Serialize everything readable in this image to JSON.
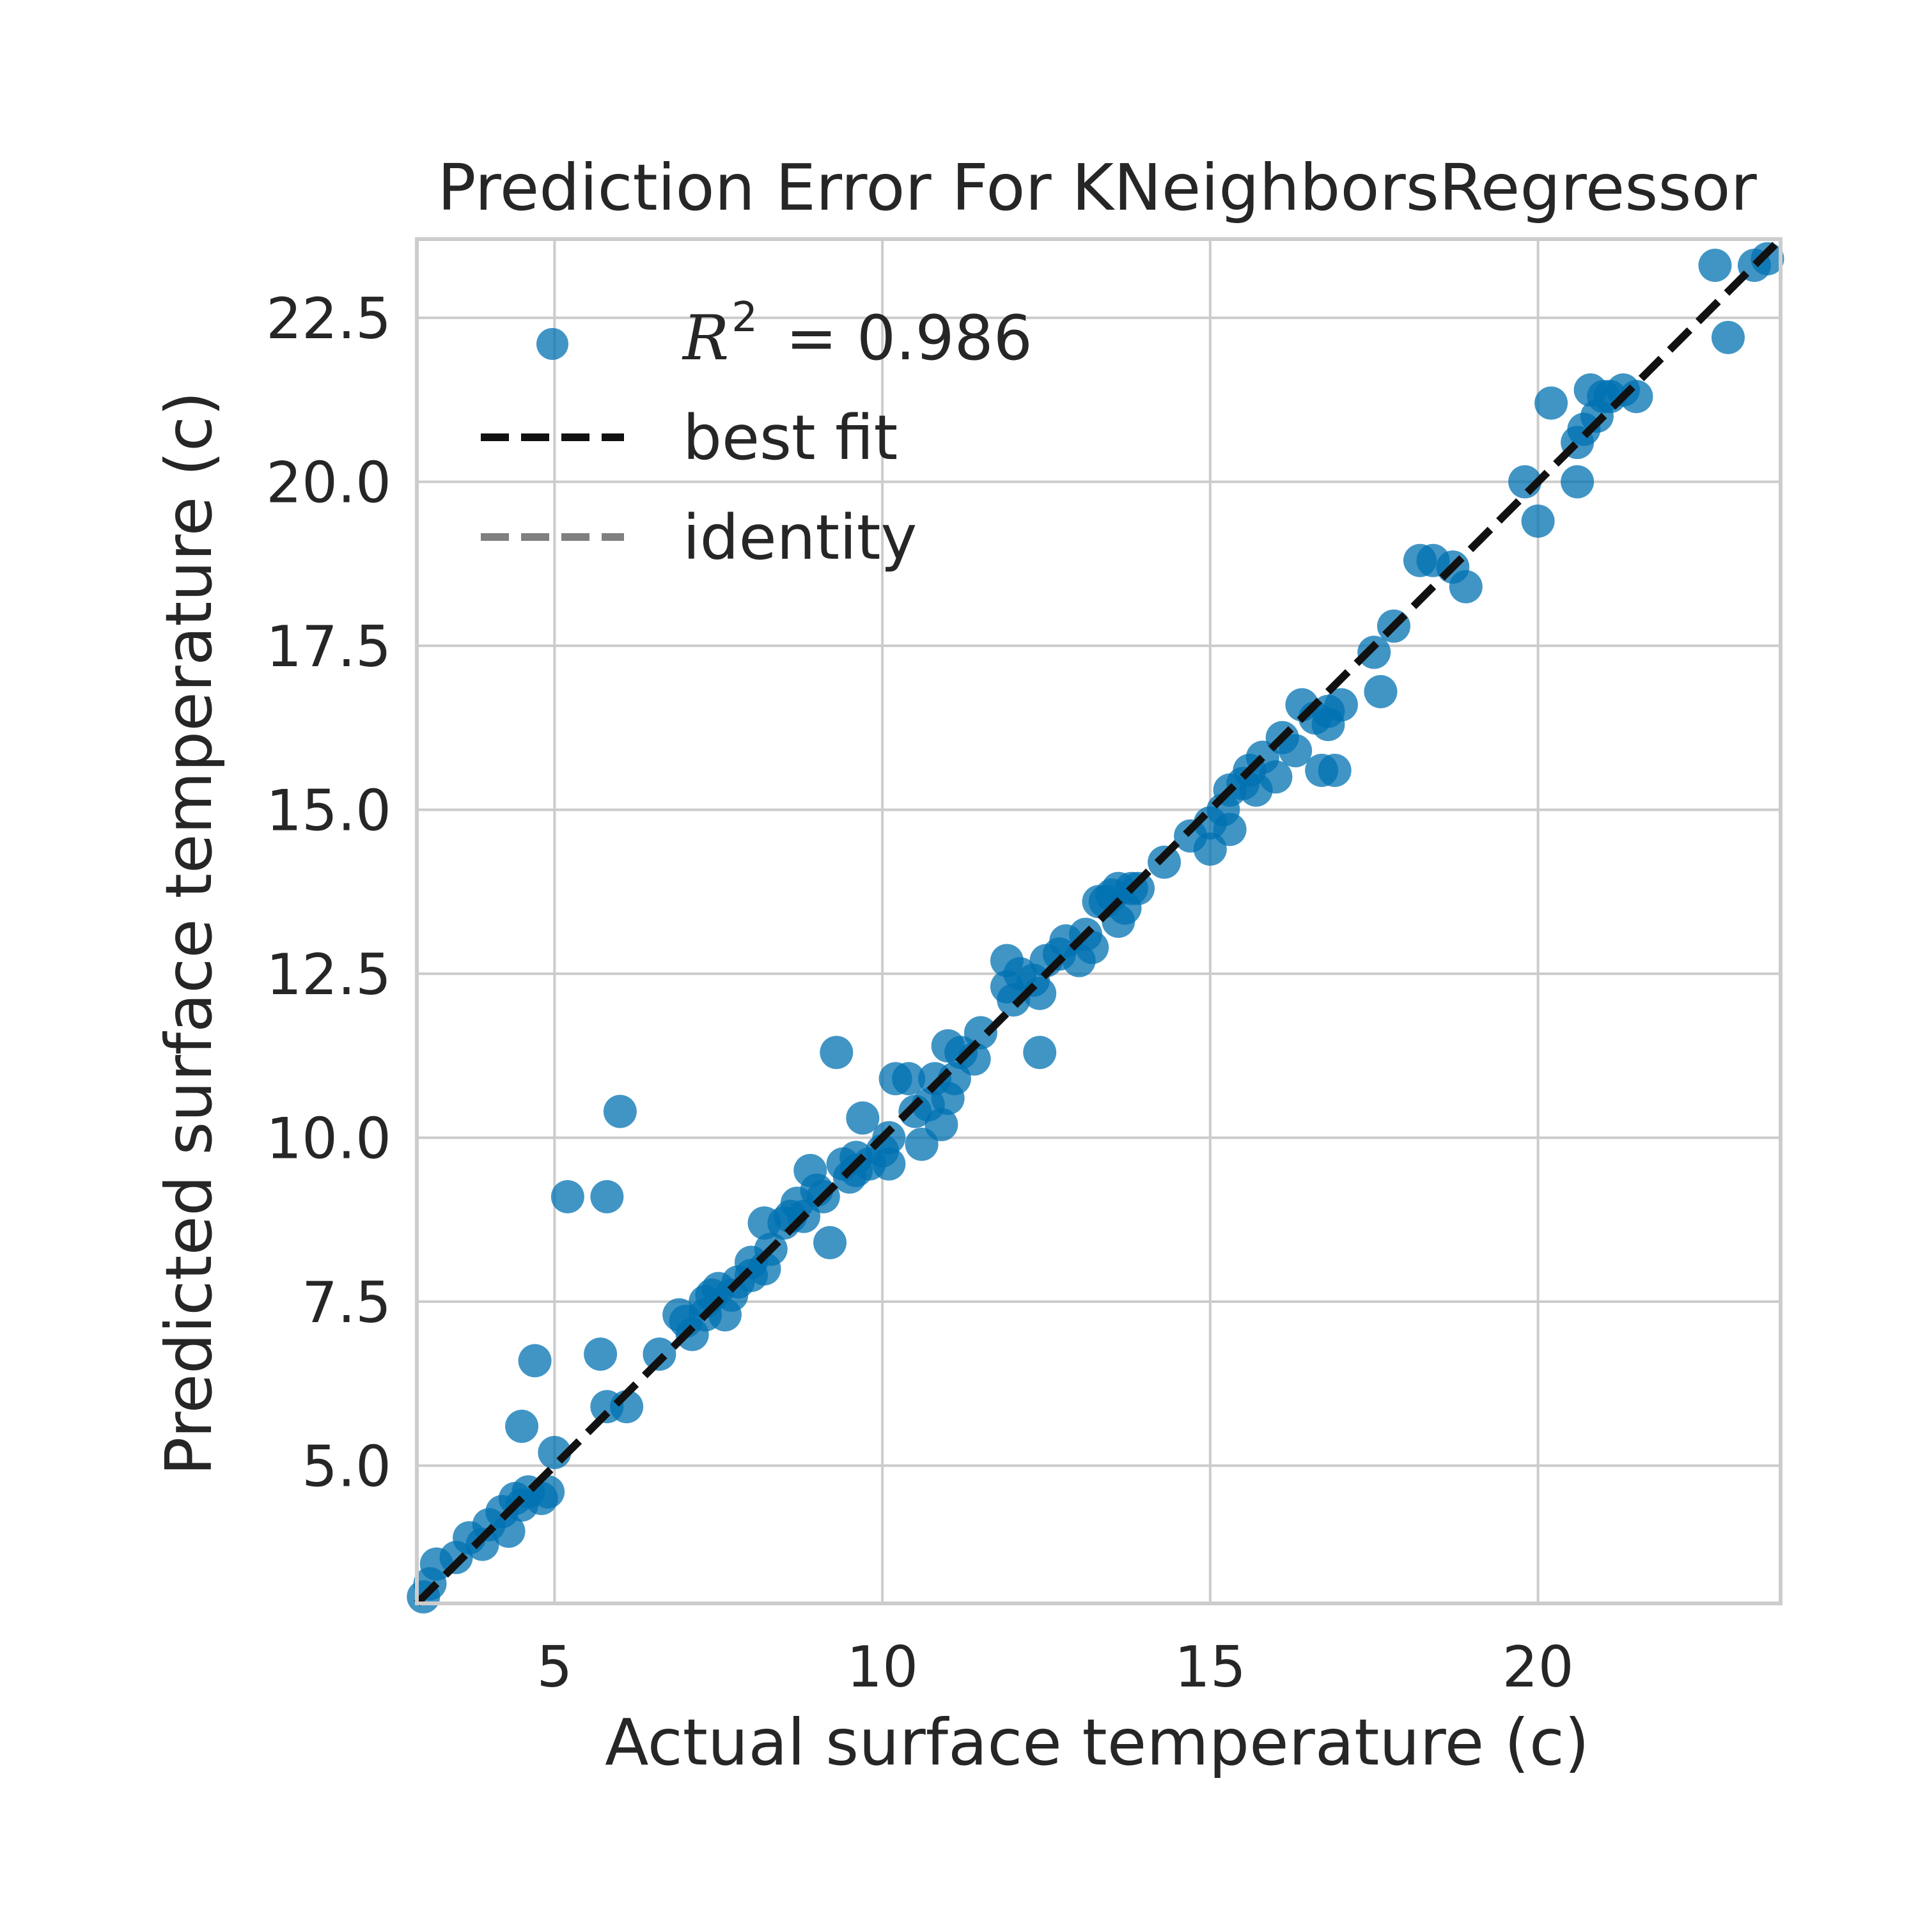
{
  "chart_data": {
    "type": "scatter",
    "title": "Prediction Error For KNeighborsRegressor",
    "xlabel": "Actual surface temperature (c)",
    "ylabel": "Predicted surface temperature (c)",
    "xlim": [
      2.9,
      23.7
    ],
    "ylim": [
      2.9,
      23.7
    ],
    "xticks": [
      5,
      10,
      15,
      20
    ],
    "xtick_labels": [
      "5",
      "10",
      "15",
      "20"
    ],
    "yticks": [
      5.0,
      7.5,
      10.0,
      12.5,
      15.0,
      17.5,
      20.0,
      22.5
    ],
    "ytick_labels": [
      "5.0",
      "7.5",
      "10.0",
      "12.5",
      "15.0",
      "17.5",
      "20.0",
      "22.5"
    ],
    "grid": true,
    "legend_position": "upper-left",
    "legend": {
      "r2_symbol": "R",
      "r2_exponent": "2",
      "r2_value": "= 0.986",
      "best_fit_label": "best fit",
      "identity_label": "identity"
    },
    "colors": {
      "points": "#0072B2",
      "best_fit": "#111111",
      "identity": "#808080",
      "grid": "#cccccc",
      "frame": "#cccccc"
    },
    "best_fit": {
      "slope": 1.0,
      "intercept": 0.0
    },
    "points": [
      [
        3.0,
        3.0
      ],
      [
        3.2,
        3.5
      ],
      [
        3.1,
        3.2
      ],
      [
        3.5,
        3.6
      ],
      [
        3.7,
        3.9
      ],
      [
        3.9,
        3.8
      ],
      [
        4.0,
        4.1
      ],
      [
        4.2,
        4.3
      ],
      [
        4.3,
        4.0
      ],
      [
        4.4,
        4.5
      ],
      [
        4.5,
        4.4
      ],
      [
        4.5,
        5.6
      ],
      [
        4.6,
        4.6
      ],
      [
        4.7,
        6.6
      ],
      [
        4.8,
        4.5
      ],
      [
        4.9,
        4.6
      ],
      [
        5.0,
        5.2
      ],
      [
        5.2,
        9.1
      ],
      [
        5.7,
        6.7
      ],
      [
        5.8,
        9.1
      ],
      [
        5.8,
        5.9
      ],
      [
        6.0,
        10.4
      ],
      [
        6.1,
        5.9
      ],
      [
        6.6,
        6.7
      ],
      [
        6.9,
        7.3
      ],
      [
        7.0,
        7.2
      ],
      [
        7.1,
        7.0
      ],
      [
        7.3,
        7.3
      ],
      [
        7.3,
        7.5
      ],
      [
        7.4,
        7.6
      ],
      [
        7.5,
        7.7
      ],
      [
        7.6,
        7.3
      ],
      [
        7.7,
        7.6
      ],
      [
        7.8,
        7.8
      ],
      [
        8.0,
        7.9
      ],
      [
        8.0,
        8.1
      ],
      [
        8.2,
        8.0
      ],
      [
        8.2,
        8.7
      ],
      [
        8.3,
        8.3
      ],
      [
        8.5,
        8.7
      ],
      [
        8.6,
        8.8
      ],
      [
        8.7,
        9.0
      ],
      [
        8.8,
        8.8
      ],
      [
        8.9,
        9.5
      ],
      [
        9.0,
        9.2
      ],
      [
        9.1,
        9.1
      ],
      [
        9.2,
        8.4
      ],
      [
        9.3,
        11.3
      ],
      [
        9.4,
        9.6
      ],
      [
        9.5,
        9.4
      ],
      [
        9.6,
        9.5
      ],
      [
        9.6,
        9.7
      ],
      [
        9.7,
        10.3
      ],
      [
        9.8,
        9.6
      ],
      [
        10.0,
        9.8
      ],
      [
        10.1,
        9.6
      ],
      [
        10.1,
        10.0
      ],
      [
        10.2,
        10.9
      ],
      [
        10.4,
        10.9
      ],
      [
        10.5,
        10.4
      ],
      [
        10.6,
        9.9
      ],
      [
        10.7,
        10.5
      ],
      [
        10.8,
        10.9
      ],
      [
        10.9,
        10.2
      ],
      [
        11.0,
        10.6
      ],
      [
        11.0,
        11.4
      ],
      [
        11.1,
        10.9
      ],
      [
        11.2,
        11.3
      ],
      [
        11.4,
        11.2
      ],
      [
        11.5,
        11.6
      ],
      [
        11.9,
        12.7
      ],
      [
        11.9,
        12.3
      ],
      [
        12.0,
        12.1
      ],
      [
        12.1,
        12.5
      ],
      [
        12.3,
        12.4
      ],
      [
        12.4,
        11.3
      ],
      [
        12.4,
        12.2
      ],
      [
        12.5,
        12.7
      ],
      [
        12.7,
        12.8
      ],
      [
        12.8,
        13.0
      ],
      [
        13.0,
        12.7
      ],
      [
        13.1,
        13.1
      ],
      [
        13.2,
        12.9
      ],
      [
        13.3,
        13.6
      ],
      [
        13.4,
        13.6
      ],
      [
        13.5,
        13.7
      ],
      [
        13.6,
        13.3
      ],
      [
        13.6,
        13.8
      ],
      [
        13.7,
        13.5
      ],
      [
        13.8,
        13.8
      ],
      [
        13.9,
        13.8
      ],
      [
        14.3,
        14.2
      ],
      [
        14.7,
        14.6
      ],
      [
        15.0,
        14.8
      ],
      [
        15.0,
        14.4
      ],
      [
        15.2,
        15.0
      ],
      [
        15.3,
        15.3
      ],
      [
        15.3,
        14.7
      ],
      [
        15.5,
        15.4
      ],
      [
        15.6,
        15.6
      ],
      [
        15.7,
        15.3
      ],
      [
        15.8,
        15.8
      ],
      [
        16.0,
        15.5
      ],
      [
        16.1,
        16.1
      ],
      [
        16.3,
        15.9
      ],
      [
        16.4,
        16.6
      ],
      [
        16.6,
        16.4
      ],
      [
        16.7,
        15.6
      ],
      [
        16.8,
        16.5
      ],
      [
        16.8,
        16.3
      ],
      [
        16.9,
        15.6
      ],
      [
        17.0,
        16.6
      ],
      [
        17.5,
        17.4
      ],
      [
        17.6,
        16.8
      ],
      [
        17.8,
        17.8
      ],
      [
        18.2,
        18.8
      ],
      [
        18.4,
        18.8
      ],
      [
        18.7,
        18.7
      ],
      [
        18.9,
        18.4
      ],
      [
        19.8,
        20.0
      ],
      [
        20.0,
        19.4
      ],
      [
        20.2,
        21.2
      ],
      [
        20.6,
        20.0
      ],
      [
        20.6,
        20.6
      ],
      [
        20.7,
        20.8
      ],
      [
        20.8,
        21.4
      ],
      [
        20.9,
        21.0
      ],
      [
        21.0,
        21.3
      ],
      [
        21.1,
        21.3
      ],
      [
        21.3,
        21.4
      ],
      [
        21.5,
        21.3
      ],
      [
        22.7,
        23.3
      ],
      [
        22.9,
        22.2
      ],
      [
        23.3,
        23.3
      ],
      [
        23.5,
        23.4
      ]
    ]
  }
}
